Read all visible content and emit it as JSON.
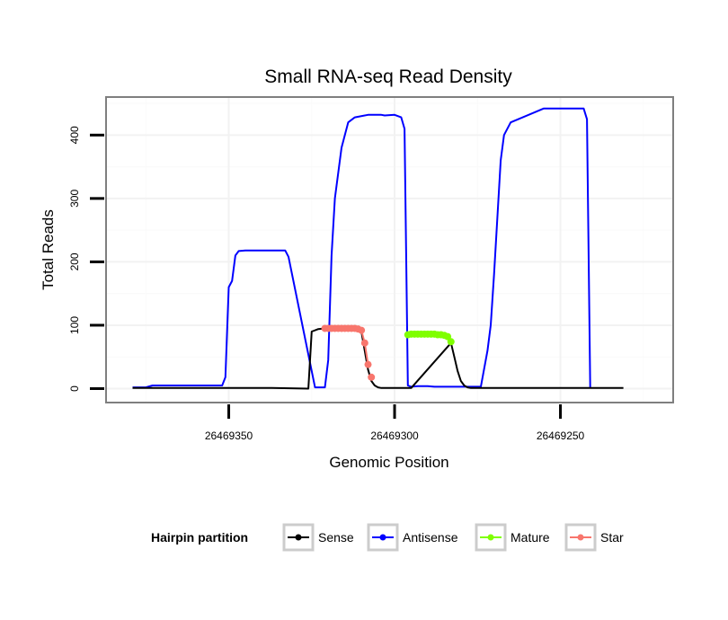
{
  "chart_data": {
    "type": "line",
    "title": "Small RNA-seq Read Density",
    "xlabel": "Genomic Position",
    "ylabel": "Total Reads",
    "x_reversed": true,
    "xlim": [
      26469216,
      26469387
    ],
    "ylim": [
      -22,
      460
    ],
    "x_ticks": [
      26469350,
      26469300,
      26469250
    ],
    "x_tick_labels": [
      "26469350",
      "26469300",
      "26469250"
    ],
    "y_ticks": [
      0,
      100,
      200,
      300,
      400
    ],
    "y_tick_labels": [
      "0",
      "100",
      "200",
      "300",
      "400"
    ],
    "grid": true,
    "legend": {
      "title": "Hairpin partition",
      "position": "bottom",
      "entries": [
        {
          "label": "Sense",
          "color": "#000000"
        },
        {
          "label": "Antisense",
          "color": "#0000ff"
        },
        {
          "label": "Mature",
          "color": "#7fff00"
        },
        {
          "label": "Star",
          "color": "#f8766d"
        }
      ]
    },
    "series": [
      {
        "name": "Antisense",
        "color": "#0000ff",
        "style": "line",
        "x": [
          26469379,
          26469375,
          26469373,
          26469363,
          26469353,
          26469352,
          26469351,
          26469350,
          26469349,
          26469348,
          26469347,
          26469345,
          26469340,
          26469334,
          26469333,
          26469332,
          26469324,
          26469323,
          26469322,
          26469321,
          26469320,
          26469319,
          26469318,
          26469316,
          26469314,
          26469312,
          26469308,
          26469305,
          26469304,
          26469303,
          26469300,
          26469299,
          26469298,
          26469297,
          26469296,
          26469295,
          26469293,
          26469290,
          26469288,
          26469282,
          26469276,
          26469274,
          26469272,
          26469271,
          26469270,
          26469269,
          26469268,
          26469267,
          26469265,
          26469255,
          26469250,
          26469243,
          26469242,
          26469241
        ],
        "y": [
          2,
          2,
          5,
          5,
          5,
          5,
          18,
          160,
          170,
          210,
          217,
          218,
          218,
          218,
          218,
          208,
          2,
          2,
          2,
          2,
          45,
          210,
          300,
          380,
          420,
          428,
          432,
          432,
          432,
          431,
          432,
          430,
          428,
          410,
          5,
          3,
          4,
          4,
          3,
          3,
          3,
          3,
          60,
          100,
          180,
          270,
          360,
          400,
          420,
          442,
          442,
          442,
          425,
          2
        ]
      },
      {
        "name": "Sense",
        "color": "#000000",
        "style": "line",
        "x": [
          26469379,
          26469365,
          26469350,
          26469337,
          26469326,
          26469325,
          26469323,
          26469321,
          26469319,
          26469312,
          26469311,
          26469310,
          26469309,
          26469308,
          26469307,
          26469306,
          26469305,
          26469304,
          26469303,
          26469302,
          26469301,
          26469299,
          26469297,
          26469295,
          26469283,
          26469282,
          26469281,
          26469280,
          26469279,
          26469278,
          26469277,
          26469275,
          26469270,
          26469260,
          26469250,
          26469240,
          26469231
        ],
        "y": [
          1,
          1,
          1,
          1,
          0,
          90,
          94,
          95,
          96,
          96,
          94,
          90,
          60,
          30,
          12,
          5,
          2,
          1,
          1,
          1,
          1,
          1,
          1,
          1,
          72,
          50,
          28,
          12,
          5,
          2,
          1,
          1,
          1,
          1,
          1,
          1,
          1
        ]
      },
      {
        "name": "Star",
        "color": "#f8766d",
        "style": "points",
        "x": [
          26469321,
          26469320,
          26469319,
          26469318,
          26469317,
          26469316,
          26469315,
          26469314,
          26469313,
          26469312,
          26469311,
          26469310,
          26469309,
          26469308
        ],
        "y": [
          95,
          95,
          95,
          95,
          95,
          95,
          95,
          95,
          95,
          95,
          94,
          92,
          72,
          38
        ]
      },
      {
        "name": "Mature",
        "color": "#7fff00",
        "style": "points",
        "x": [
          26469296,
          26469295,
          26469294,
          26469293,
          26469292,
          26469291,
          26469290,
          26469289,
          26469288,
          26469287,
          26469286,
          26469285,
          26469284,
          26469283
        ],
        "y": [
          85,
          86,
          86,
          86,
          86,
          86,
          86,
          86,
          86,
          85,
          85,
          84,
          82,
          74
        ]
      }
    ],
    "extra_points": [
      {
        "series": "Star",
        "x": 26469307,
        "y": 18
      }
    ]
  }
}
